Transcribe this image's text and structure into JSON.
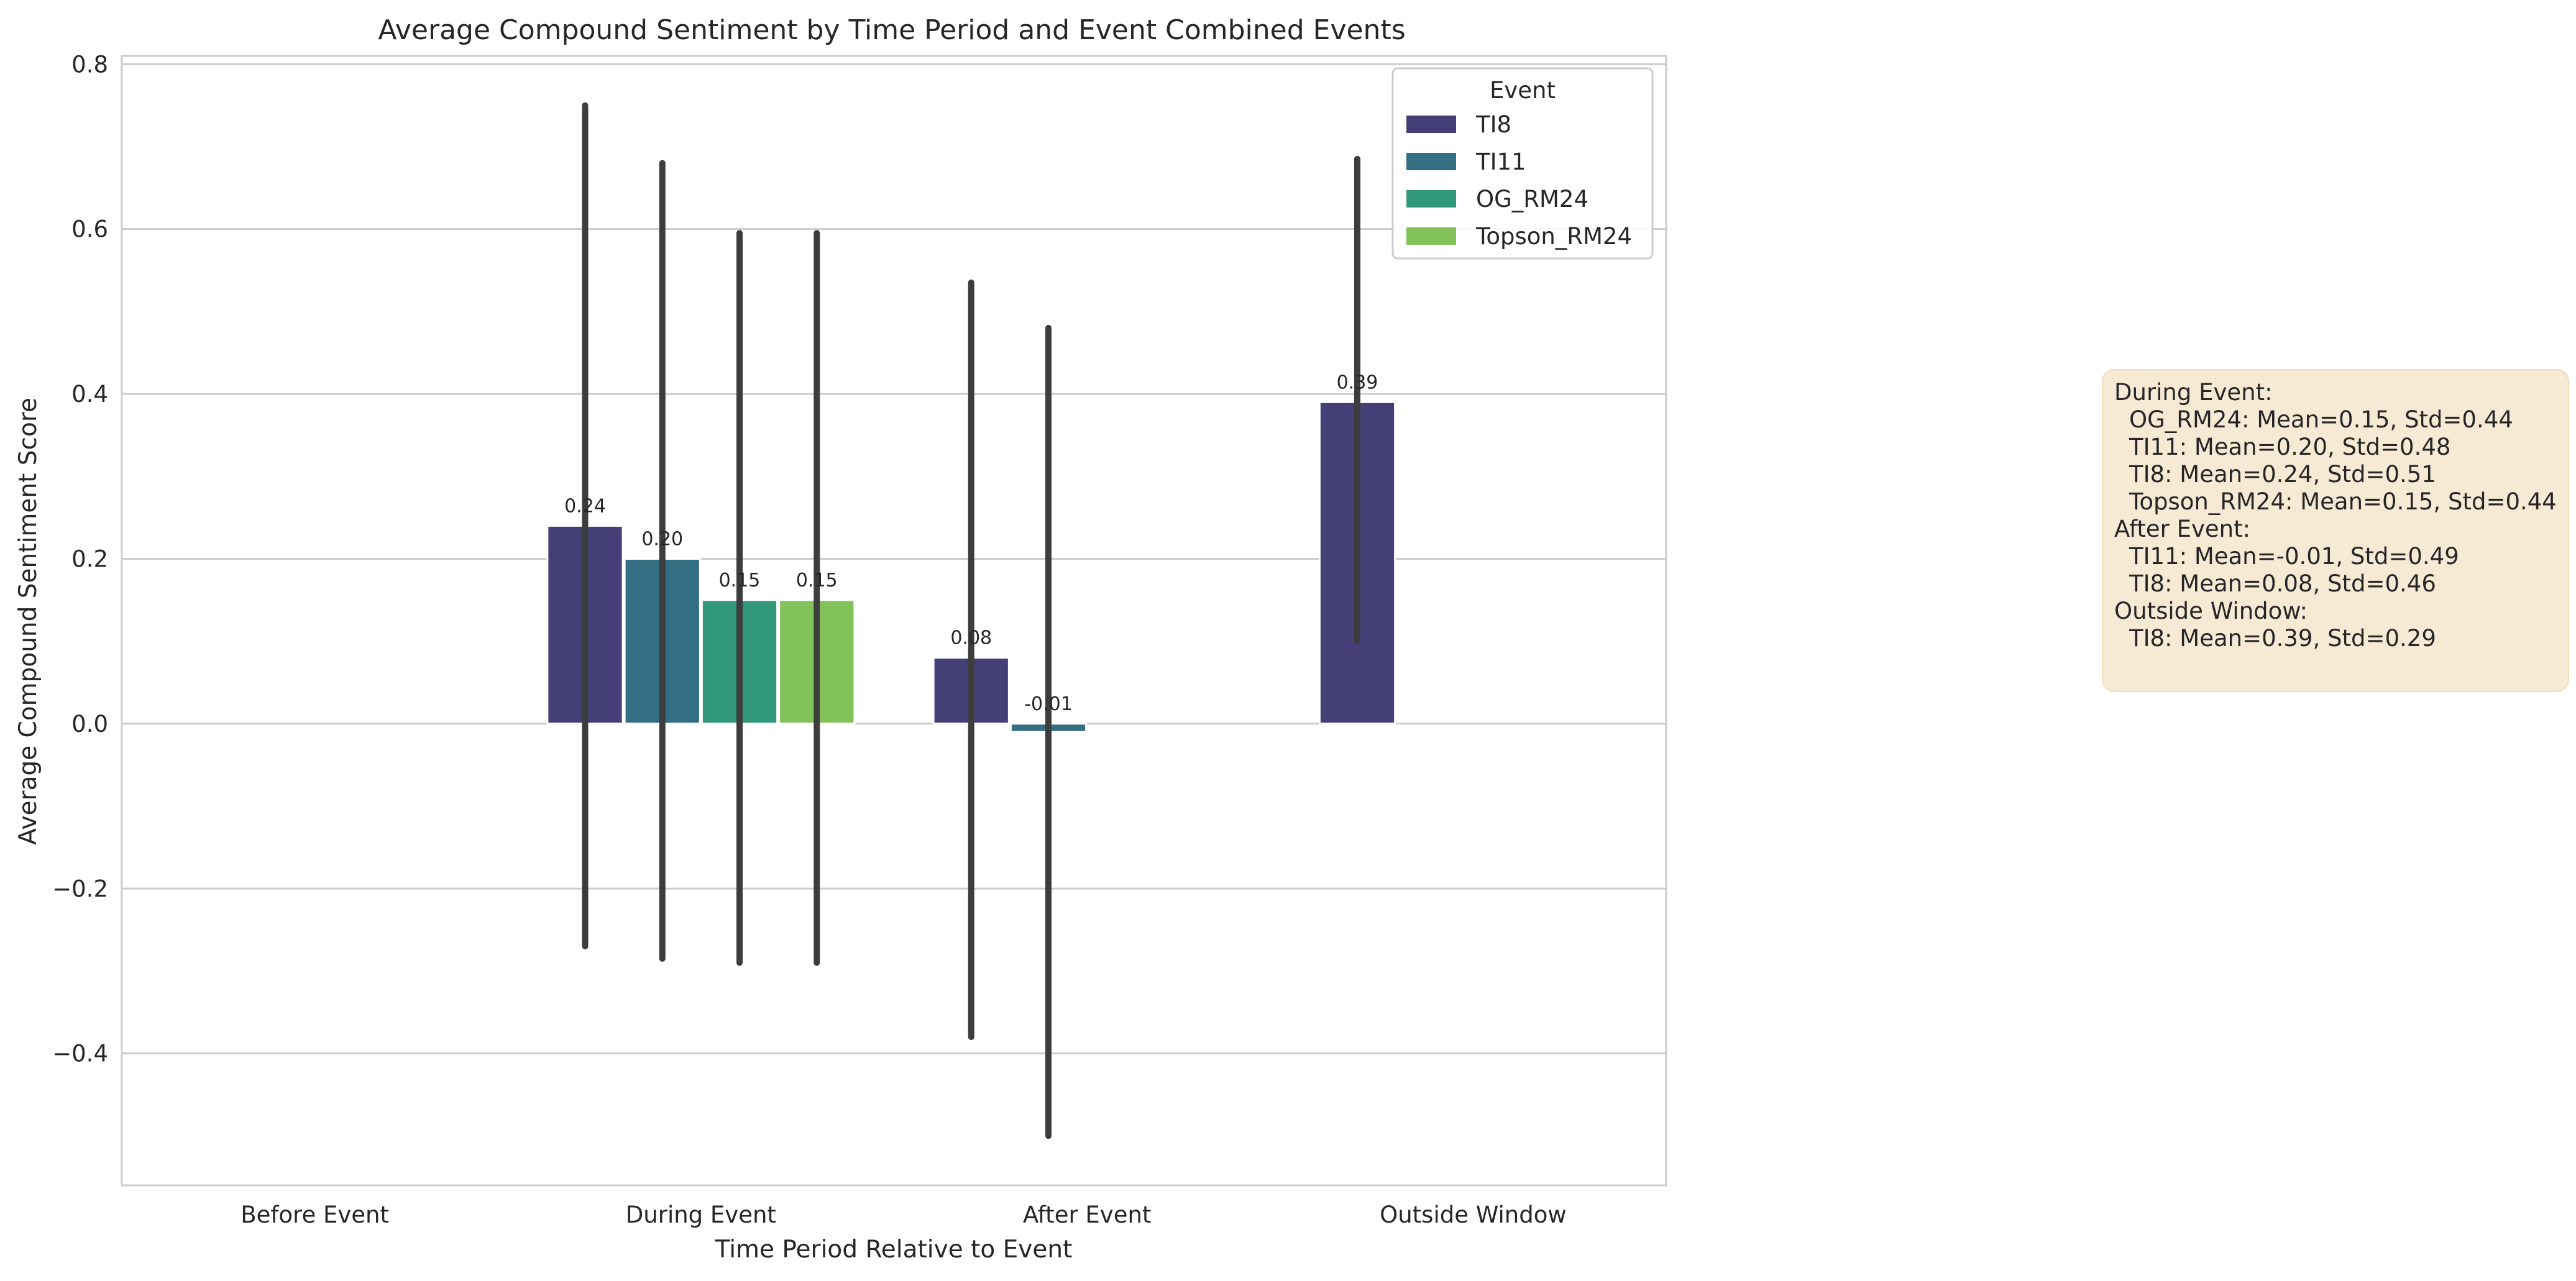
{
  "chart_data": {
    "type": "bar",
    "title": "Average Compound Sentiment by Time Period and Event Combined Events",
    "xlabel": "Time Period Relative to Event",
    "ylabel": "Average Compound Sentiment Score",
    "categories": [
      "Before Event",
      "During Event",
      "After Event",
      "Outside Window"
    ],
    "ylim": [
      -0.56,
      0.81
    ],
    "yticks": [
      -0.4,
      -0.2,
      0.0,
      0.2,
      0.4,
      0.6,
      0.8
    ],
    "ytick_labels": [
      "−0.4",
      "−0.2",
      "0.0",
      "0.2",
      "0.4",
      "0.6",
      "0.8"
    ],
    "grid": "horizontal",
    "legend": {
      "title": "Event",
      "placement": "top-right"
    },
    "series": [
      {
        "name": "TI8",
        "color": "#453f78",
        "values": [
          null,
          0.24,
          0.08,
          0.39
        ],
        "labels": [
          "",
          "0.24",
          "0.08",
          "0.39"
        ],
        "ci": [
          null,
          [
            -0.27,
            0.75
          ],
          [
            -0.38,
            0.535
          ],
          [
            0.1,
            0.685
          ]
        ]
      },
      {
        "name": "TI11",
        "color": "#346e82",
        "values": [
          null,
          0.2,
          -0.01,
          null
        ],
        "labels": [
          "",
          "0.20",
          "-0.01",
          ""
        ],
        "ci": [
          null,
          [
            -0.285,
            0.68
          ],
          [
            -0.5,
            0.48
          ],
          null
        ]
      },
      {
        "name": "OG_RM24",
        "color": "#31997a",
        "values": [
          null,
          0.15,
          null,
          null
        ],
        "labels": [
          "",
          "0.15",
          "",
          ""
        ],
        "ci": [
          null,
          [
            -0.29,
            0.595
          ],
          null,
          null
        ]
      },
      {
        "name": "Topson_RM24",
        "color": "#83c25a",
        "values": [
          null,
          0.15,
          null,
          null
        ],
        "labels": [
          "",
          "0.15",
          "",
          ""
        ],
        "ci": [
          null,
          [
            -0.29,
            0.595
          ],
          null,
          null
        ]
      }
    ],
    "annotation_box": {
      "groups": [
        {
          "title": "During Event:",
          "lines": [
            "OG_RM24: Mean=0.15, Std=0.44",
            "TI11: Mean=0.20, Std=0.48",
            "TI8: Mean=0.24, Std=0.51",
            "Topson_RM24: Mean=0.15, Std=0.44"
          ]
        },
        {
          "title": "After Event:",
          "lines": [
            "TI11: Mean=-0.01, Std=0.49",
            "TI8: Mean=0.08, Std=0.46"
          ]
        },
        {
          "title": "Outside Window:",
          "lines": [
            "TI8: Mean=0.39, Std=0.29"
          ]
        }
      ]
    }
  }
}
